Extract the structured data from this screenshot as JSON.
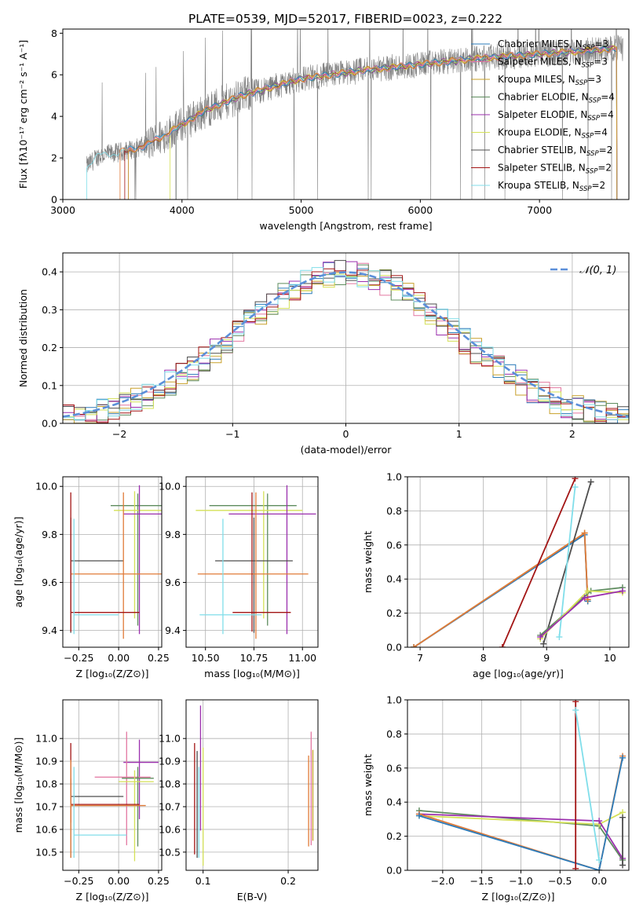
{
  "figure_title": "PLATE=0539, MJD=52017, FIBERID=0023, z=0.222",
  "colors": {
    "chabrier_miles": "#2b7bba",
    "salpeter_miles": "#e377a1",
    "kroupa_miles": "#c8a02a",
    "chabrier_elodie": "#5e8c5e",
    "salpeter_elodie": "#9b2fae",
    "kroupa_elodie": "#d4e157",
    "chabrier_stelib": "#4d4d4d",
    "salpeter_stelib": "#a31515",
    "kroupa_stelib": "#80deea",
    "observed": "#808080",
    "orange_model": "#e07b39",
    "normal_curve": "#5b8fd9"
  },
  "chart_data": [
    {
      "id": "spectrum",
      "type": "line",
      "title": "PLATE=0539, MJD=52017, FIBERID=0023, z=0.222",
      "xlabel": "wavelength [Angstrom, rest frame]",
      "ylabel": "Flux [fλ10⁻¹⁷ erg cm⁻² s⁻¹ A⁻¹]",
      "xlim": [
        3000,
        7750
      ],
      "ylim": [
        0,
        8.2
      ],
      "xticks": [
        "3000",
        "4000",
        "5000",
        "6000",
        "7000"
      ],
      "yticks": [
        "0",
        "2",
        "4",
        "6",
        "8"
      ],
      "legend_position": "top-right",
      "legend": [
        "Chabrier MILES, N_SSP=3",
        "Salpeter MILES, N_SSP=3",
        "Kroupa MILES, N_SSP=3",
        "Chabrier ELODIE, N_SSP=4",
        "Salpeter ELODIE, N_SSP=4",
        "Kroupa ELODIE, N_SSP=4",
        "Chabrier STELIB, N_SSP=2",
        "Salpeter STELIB, N_SSP=2",
        "Kroupa STELIB, N_SSP=2"
      ],
      "continuum": {
        "x": [
          3200,
          3300,
          3500,
          3700,
          4000,
          4200,
          4500,
          5000,
          5500,
          6000,
          6500,
          7000,
          7500,
          7700
        ],
        "y": [
          1.6,
          2.1,
          2.3,
          2.6,
          3.6,
          4.3,
          5.0,
          5.8,
          6.2,
          6.5,
          6.8,
          7.0,
          7.2,
          7.3
        ]
      }
    },
    {
      "id": "residuals",
      "type": "histogram",
      "xlabel": "(data-model)/error",
      "ylabel": "Normed distribution",
      "xlim": [
        -2.5,
        2.5
      ],
      "ylim": [
        0,
        0.45
      ],
      "xticks": [
        "−2",
        "−1",
        "0",
        "1",
        "2"
      ],
      "yticks": [
        "0.0",
        "0.1",
        "0.2",
        "0.3",
        "0.4"
      ],
      "legend_position": "top-right",
      "legend": [
        "𝒩(0, 1)"
      ],
      "bin_width": 0.1
    },
    {
      "id": "age_vs_Z",
      "type": "errorbar",
      "xlabel": "Z [log₁₀(Z/Z⊙)]",
      "ylabel": "age  [log₁₀(age/yr)]",
      "xlim": [
        -0.35,
        0.27
      ],
      "ylim": [
        9.33,
        10.04
      ],
      "xticks": [
        "−0.25",
        "0.00",
        "0.25"
      ],
      "yticks": [
        "9.4",
        "9.6",
        "9.8",
        "10.0"
      ],
      "points": [
        {
          "model": "chabrier_elodie",
          "x": 0.12,
          "xerr": [
            0.17,
            0.2
          ],
          "y": 9.92,
          "yerr": [
            0.5,
            0.05
          ]
        },
        {
          "model": "kroupa_elodie",
          "x": 0.1,
          "xerr": [
            0.13,
            0.22
          ],
          "y": 9.9,
          "yerr": [
            0.45,
            0.08
          ]
        },
        {
          "model": "salpeter_elodie",
          "x": 0.13,
          "xerr": [
            0.1,
            0.22
          ],
          "y": 9.885,
          "yerr": [
            0.5,
            0.12
          ]
        },
        {
          "model": "chabrier_stelib",
          "x": -0.3,
          "xerr": [
            0,
            0.33
          ],
          "y": 9.69,
          "yerr": [
            0.3,
            0.18
          ]
        },
        {
          "model": "orange_model",
          "x": 0.03,
          "xerr": [
            0.33,
            0.3
          ],
          "y": 9.635,
          "yerr": [
            0.27,
            0.34
          ]
        },
        {
          "model": "salpeter_stelib",
          "x": -0.3,
          "xerr": [
            0,
            0.43
          ],
          "y": 9.475,
          "yerr": [
            0.08,
            0.5
          ]
        },
        {
          "model": "kroupa_stelib",
          "x": -0.28,
          "xerr": [
            0,
            0.28
          ],
          "y": 9.465,
          "yerr": [
            0.08,
            0.4
          ]
        }
      ]
    },
    {
      "id": "age_vs_mass",
      "type": "errorbar",
      "xlabel": "mass [log₁₀(M/M⊙)]",
      "ylabel": "",
      "xlim": [
        10.4,
        11.08
      ],
      "ylim": [
        9.33,
        10.04
      ],
      "xticks": [
        "10.50",
        "10.75",
        "11.00"
      ],
      "yticks": [
        "9.4",
        "9.6",
        "9.8",
        "10.0"
      ],
      "points": [
        {
          "model": "chabrier_elodie",
          "x": 10.82,
          "xerr": [
            0.3,
            0.15
          ],
          "y": 9.92,
          "yerr": [
            0.5,
            0.05
          ]
        },
        {
          "model": "kroupa_elodie",
          "x": 10.8,
          "xerr": [
            0.35,
            0.2
          ],
          "y": 9.9,
          "yerr": [
            0.45,
            0.08
          ]
        },
        {
          "model": "salpeter_elodie",
          "x": 10.92,
          "xerr": [
            0.3,
            0.15
          ],
          "y": 9.885,
          "yerr": [
            0.5,
            0.12
          ]
        },
        {
          "model": "chabrier_stelib",
          "x": 10.75,
          "xerr": [
            0.2,
            0.2
          ],
          "y": 9.69,
          "yerr": [
            0.3,
            0.18
          ]
        },
        {
          "model": "orange_model",
          "x": 10.76,
          "xerr": [
            0.3,
            0.27
          ],
          "y": 9.635,
          "yerr": [
            0.27,
            0.34
          ]
        },
        {
          "model": "salpeter_stelib",
          "x": 10.74,
          "xerr": [
            0.1,
            0.2
          ],
          "y": 9.475,
          "yerr": [
            0.08,
            0.5
          ]
        },
        {
          "model": "kroupa_stelib",
          "x": 10.59,
          "xerr": [
            0.12,
            0.2
          ],
          "y": 9.465,
          "yerr": [
            0.08,
            0.4
          ]
        }
      ]
    },
    {
      "id": "massweight_vs_age",
      "type": "line",
      "xlabel": "age  [log₁₀(age/yr)]",
      "ylabel": "mass weight",
      "xlim": [
        6.8,
        10.3
      ],
      "ylim": [
        0,
        1.0
      ],
      "xticks": [
        "7",
        "8",
        "9",
        "10"
      ],
      "yticks": [
        "0.0",
        "0.2",
        "0.4",
        "0.6",
        "0.8",
        "1.0"
      ],
      "series": [
        {
          "model": "kroupa_miles",
          "x": [
            6.9,
            9.6,
            9.65
          ],
          "y": [
            0.0,
            0.67,
            0.27
          ]
        },
        {
          "model": "chabrier_miles",
          "x": [
            6.9,
            9.6,
            9.65
          ],
          "y": [
            0.0,
            0.66,
            0.27
          ]
        },
        {
          "model": "orange_model",
          "x": [
            6.9,
            9.6,
            9.65
          ],
          "y": [
            0.0,
            0.67,
            0.28
          ]
        },
        {
          "model": "salpeter_stelib",
          "x": [
            8.3,
            9.45
          ],
          "y": [
            0.0,
            0.99
          ]
        },
        {
          "model": "chabrier_stelib",
          "x": [
            8.95,
            9.7
          ],
          "y": [
            0.02,
            0.97
          ]
        },
        {
          "model": "kroupa_stelib",
          "x": [
            9.2,
            9.45
          ],
          "y": [
            0.06,
            0.94
          ]
        },
        {
          "model": "chabrier_elodie",
          "x": [
            8.9,
            9.7,
            10.2
          ],
          "y": [
            0.07,
            0.33,
            0.35
          ]
        },
        {
          "model": "kroupa_elodie",
          "x": [
            8.9,
            9.65,
            10.2
          ],
          "y": [
            0.05,
            0.33,
            0.32
          ]
        },
        {
          "model": "salpeter_elodie",
          "x": [
            8.9,
            9.6,
            10.2
          ],
          "y": [
            0.06,
            0.29,
            0.33
          ]
        }
      ]
    },
    {
      "id": "mass_vs_Z",
      "type": "errorbar",
      "xlabel": "Z [log₁₀(Z/Z⊙)]",
      "ylabel": "mass [log₁₀(M/M⊙)]",
      "xlim": [
        -0.35,
        0.27
      ],
      "ylim": [
        10.42,
        11.17
      ],
      "xticks": [
        "−0.25",
        "0.00",
        "0.25"
      ],
      "yticks": [
        "10.5",
        "10.6",
        "10.7",
        "10.8",
        "10.9",
        "11.0"
      ],
      "points": [
        {
          "model": "salpeter_elodie",
          "x": 0.13,
          "xerr": [
            0.1,
            0.12
          ],
          "y": 10.895,
          "yerr": [
            0.25,
            0.1
          ]
        },
        {
          "model": "salpeter_miles",
          "x": 0.05,
          "xerr": [
            0.2,
            0.15
          ],
          "y": 10.83,
          "yerr": [
            0.3,
            0.2
          ]
        },
        {
          "model": "chabrier_elodie",
          "x": 0.12,
          "xerr": [
            0.1,
            0.1
          ],
          "y": 10.825,
          "yerr": [
            0.3,
            0.05
          ]
        },
        {
          "model": "kroupa_elodie",
          "x": 0.1,
          "xerr": [
            0.1,
            0.12
          ],
          "y": 10.81,
          "yerr": [
            0.35,
            0.05
          ]
        },
        {
          "model": "chabrier_stelib",
          "x": -0.3,
          "xerr": [
            0,
            0.33
          ],
          "y": 10.745,
          "yerr": [
            0.27,
            0.08
          ]
        },
        {
          "model": "salpeter_stelib",
          "x": -0.3,
          "xerr": [
            0,
            0.43
          ],
          "y": 10.71,
          "yerr": [
            0.08,
            0.27
          ]
        },
        {
          "model": "orange_model",
          "x": -0.3,
          "xerr": [
            0,
            0.47
          ],
          "y": 10.705,
          "yerr": [
            0.23,
            0.2
          ]
        },
        {
          "model": "kroupa_stelib",
          "x": -0.28,
          "xerr": [
            0,
            0.33
          ],
          "y": 10.575,
          "yerr": [
            0.1,
            0.3
          ]
        }
      ]
    },
    {
      "id": "mass_vs_EBV",
      "type": "errorbar",
      "xlabel": "E(B-V)",
      "ylabel": "",
      "xlim": [
        0.08,
        0.235
      ],
      "ylim": [
        10.42,
        11.17
      ],
      "xticks": [
        "0.1",
        "0.2"
      ],
      "yticks": [
        "10.5",
        "10.6",
        "10.7",
        "10.8",
        "10.9",
        "11.0"
      ],
      "points": [
        {
          "model": "salpeter_stelib",
          "x": 0.09,
          "y": 10.71,
          "yerr": [
            0.22,
            0.27
          ]
        },
        {
          "model": "chabrier_stelib",
          "x": 0.093,
          "y": 10.745,
          "yerr": [
            0.27,
            0.2
          ]
        },
        {
          "model": "salpeter_elodie",
          "x": 0.097,
          "y": 10.895,
          "yerr": [
            0.3,
            0.25
          ]
        },
        {
          "model": "kroupa_elodie",
          "x": 0.1,
          "y": 10.81,
          "yerr": [
            0.37,
            0.15
          ]
        },
        {
          "model": "kroupa_stelib",
          "x": 0.095,
          "y": 10.575,
          "yerr": [
            0.1,
            0.3
          ]
        },
        {
          "model": "orange_model",
          "x": 0.224,
          "y": 10.705,
          "yerr": [
            0.18,
            0.22
          ]
        },
        {
          "model": "salpeter_miles",
          "x": 0.227,
          "y": 10.83,
          "yerr": [
            0.3,
            0.2
          ]
        },
        {
          "model": "kroupa_miles",
          "x": 0.229,
          "y": 10.75,
          "yerr": [
            0.2,
            0.2
          ]
        }
      ]
    },
    {
      "id": "massweight_vs_Z",
      "type": "line",
      "xlabel": "Z [log₁₀(Z/Z⊙)]",
      "ylabel": "mass weight",
      "xlim": [
        -2.45,
        0.38
      ],
      "ylim": [
        0,
        1.0
      ],
      "xticks": [
        "−2.0",
        "−1.5",
        "−1.0",
        "−0.5",
        "0.0"
      ],
      "yticks": [
        "0.0",
        "0.2",
        "0.4",
        "0.6",
        "0.8",
        "1.0"
      ],
      "series": [
        {
          "model": "chabrier_elodie",
          "x": [
            -2.3,
            0.0,
            0.3
          ],
          "y": [
            0.35,
            0.26,
            0.06
          ]
        },
        {
          "model": "kroupa_elodie",
          "x": [
            -2.3,
            0.0,
            0.3
          ],
          "y": [
            0.32,
            0.27,
            0.34
          ]
        },
        {
          "model": "salpeter_elodie",
          "x": [
            -2.3,
            0.0,
            0.3
          ],
          "y": [
            0.33,
            0.29,
            0.07
          ]
        },
        {
          "model": "orange_model",
          "x": [
            -2.3,
            0.0,
            0.3
          ],
          "y": [
            0.33,
            0.0,
            0.67
          ]
        },
        {
          "model": "chabrier_miles",
          "x": [
            -2.3,
            0.0,
            0.3
          ],
          "y": [
            0.32,
            0.0,
            0.66
          ]
        },
        {
          "model": "salpeter_stelib",
          "x": [
            -0.3,
            -0.3
          ],
          "y": [
            0.01,
            0.99
          ]
        },
        {
          "model": "kroupa_stelib",
          "x": [
            -0.3,
            0.0
          ],
          "y": [
            0.94,
            0.06
          ]
        },
        {
          "model": "chabrier_stelib",
          "x": [
            0.3,
            0.3
          ],
          "y": [
            0.03,
            0.31
          ]
        }
      ]
    }
  ]
}
